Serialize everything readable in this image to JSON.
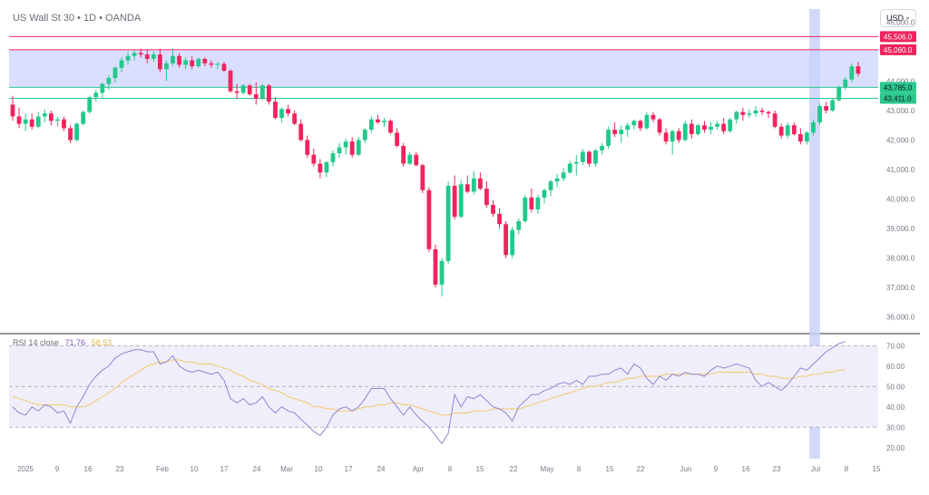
{
  "header": {
    "title": "US Wall St 30 • 1D • OANDA",
    "currency": "USD",
    "chevron_icon": "chevron-down-icon"
  },
  "rsi_legend": {
    "label": "RSI 14 close",
    "rsi_value": "71.76",
    "ma_value": "58.53"
  },
  "colors": {
    "up": "#22c98a",
    "down": "#f0245d",
    "zone_fill": "#d6dcff",
    "red_line": "#f0245d",
    "green_line": "#2cc98e",
    "highlight": "#c7d1fb",
    "rsi_line": "#8e86cf",
    "rsi_ma": "#f2c96a",
    "rsi_band": "#f1eefb"
  },
  "chart_data": [
    {
      "type": "candlestick",
      "title": "US Wall St 30 • 1D • OANDA",
      "ylim": [
        35500,
        46500
      ],
      "yticks": [
        "46,000.0",
        "45,000.0",
        "44,000.0",
        "43,000.0",
        "42,000.0",
        "41,000.0",
        "40,000.0",
        "39,000.0",
        "38,000.0",
        "37,000.0",
        "36,000.0"
      ],
      "ytick_values": [
        46000,
        45000,
        44000,
        43000,
        42000,
        41000,
        40000,
        39000,
        38000,
        37000,
        36000
      ],
      "xticks": [
        "2025",
        "9",
        "16",
        "23",
        "Feb",
        "10",
        "17",
        "24",
        "Mar",
        "10",
        "17",
        "24",
        "Apr",
        "8",
        "15",
        "22",
        "May",
        "8",
        "15",
        "22",
        "Jun",
        "9",
        "16",
        "23",
        "Jul",
        "8",
        "15"
      ],
      "levels": [
        {
          "value": 45506.0,
          "label": "45,506.0",
          "kind": "resistance"
        },
        {
          "value": 45060.0,
          "label": "45,060.0",
          "kind": "resistance"
        },
        {
          "value": 43785.0,
          "label": "43,785.0",
          "kind": "support"
        },
        {
          "value": 43411.0,
          "label": "43,411.0",
          "kind": "support"
        }
      ],
      "zone": [
        43785,
        45060
      ],
      "ohlc": [
        [
          43200,
          43500,
          42650,
          42800
        ],
        [
          42800,
          43100,
          42400,
          42550
        ],
        [
          42550,
          42900,
          42300,
          42700
        ],
        [
          42700,
          42900,
          42350,
          42450
        ],
        [
          42450,
          42950,
          42400,
          42800
        ],
        [
          42800,
          43050,
          42600,
          42900
        ],
        [
          42900,
          43000,
          42500,
          42650
        ],
        [
          42650,
          42800,
          42450,
          42700
        ],
        [
          42700,
          42800,
          42300,
          42400
        ],
        [
          42400,
          42500,
          41900,
          42000
        ],
        [
          42000,
          42600,
          41950,
          42550
        ],
        [
          42550,
          43000,
          42500,
          42950
        ],
        [
          42950,
          43500,
          42900,
          43450
        ],
        [
          43450,
          43700,
          43300,
          43600
        ],
        [
          43600,
          43950,
          43400,
          43900
        ],
        [
          43900,
          44200,
          43700,
          44100
        ],
        [
          44100,
          44500,
          43950,
          44450
        ],
        [
          44450,
          44800,
          44300,
          44700
        ],
        [
          44700,
          45000,
          44550,
          44850
        ],
        [
          44850,
          45050,
          44700,
          44950
        ],
        [
          44950,
          45100,
          44800,
          44900
        ],
        [
          44900,
          45050,
          44600,
          44750
        ],
        [
          44750,
          45000,
          44650,
          44900
        ],
        [
          44900,
          45100,
          44300,
          44400
        ],
        [
          44400,
          44700,
          44000,
          44600
        ],
        [
          44600,
          45100,
          44500,
          44850
        ],
        [
          44850,
          44950,
          44450,
          44550
        ],
        [
          44550,
          44800,
          44400,
          44700
        ],
        [
          44700,
          44850,
          44400,
          44500
        ],
        [
          44500,
          44800,
          44450,
          44750
        ],
        [
          44750,
          44800,
          44500,
          44600
        ],
        [
          44600,
          44700,
          44450,
          44550
        ],
        [
          44550,
          44650,
          44400,
          44580
        ],
        [
          44580,
          44650,
          44300,
          44350
        ],
        [
          44350,
          44400,
          43600,
          43650
        ],
        [
          43650,
          43900,
          43400,
          43600
        ],
        [
          43600,
          43900,
          43550,
          43850
        ],
        [
          43850,
          43900,
          43500,
          43550
        ],
        [
          43550,
          43950,
          43200,
          43400
        ],
        [
          43400,
          43900,
          43350,
          43850
        ],
        [
          43850,
          43900,
          43200,
          43300
        ],
        [
          43300,
          43450,
          42700,
          42750
        ],
        [
          42750,
          43100,
          42600,
          43050
        ],
        [
          43050,
          43200,
          42800,
          42900
        ],
        [
          42900,
          43000,
          42500,
          42550
        ],
        [
          42550,
          42700,
          41950,
          42000
        ],
        [
          42000,
          42150,
          41400,
          41500
        ],
        [
          41500,
          41700,
          41100,
          41200
        ],
        [
          41200,
          41350,
          40700,
          40900
        ],
        [
          40900,
          41300,
          40750,
          41250
        ],
        [
          41250,
          41650,
          41100,
          41550
        ],
        [
          41550,
          41900,
          41400,
          41750
        ],
        [
          41750,
          42050,
          41500,
          41950
        ],
        [
          41950,
          42100,
          41400,
          41500
        ],
        [
          41500,
          42100,
          41450,
          42000
        ],
        [
          42000,
          42400,
          41900,
          42350
        ],
        [
          42350,
          42800,
          42250,
          42700
        ],
        [
          42700,
          42850,
          42550,
          42600
        ],
        [
          42600,
          42750,
          42450,
          42650
        ],
        [
          42650,
          42700,
          42200,
          42250
        ],
        [
          42250,
          42400,
          41750,
          41800
        ],
        [
          41800,
          41900,
          41100,
          41200
        ],
        [
          41200,
          41600,
          41150,
          41500
        ],
        [
          41500,
          41600,
          41100,
          41150
        ],
        [
          41150,
          41200,
          40200,
          40300
        ],
        [
          40300,
          40400,
          38200,
          38300
        ],
        [
          38300,
          38450,
          37000,
          37100
        ],
        [
          37100,
          38000,
          36700,
          37900
        ],
        [
          37900,
          40600,
          37800,
          40450
        ],
        [
          40450,
          40800,
          39300,
          39400
        ],
        [
          39400,
          40650,
          39350,
          40500
        ],
        [
          40500,
          40800,
          40200,
          40250
        ],
        [
          40250,
          40950,
          40150,
          40700
        ],
        [
          40700,
          40900,
          40300,
          40350
        ],
        [
          40350,
          40600,
          39700,
          39800
        ],
        [
          39800,
          39950,
          39400,
          39500
        ],
        [
          39500,
          39700,
          39000,
          39150
        ],
        [
          39150,
          39250,
          38000,
          38100
        ],
        [
          38100,
          39050,
          38000,
          38950
        ],
        [
          38950,
          39350,
          38800,
          39250
        ],
        [
          39250,
          40150,
          39200,
          40050
        ],
        [
          40050,
          40350,
          39550,
          39650
        ],
        [
          39650,
          40150,
          39500,
          40050
        ],
        [
          40050,
          40350,
          39850,
          40300
        ],
        [
          40300,
          40650,
          40100,
          40600
        ],
        [
          40600,
          40850,
          40400,
          40700
        ],
        [
          40700,
          41050,
          40600,
          40900
        ],
        [
          40900,
          41300,
          40850,
          41200
        ],
        [
          41200,
          41500,
          40800,
          41250
        ],
        [
          41250,
          41700,
          41150,
          41600
        ],
        [
          41600,
          41650,
          41100,
          41200
        ],
        [
          41200,
          41700,
          41100,
          41650
        ],
        [
          41650,
          41900,
          41500,
          41800
        ],
        [
          41800,
          42450,
          41700,
          42350
        ],
        [
          42350,
          42600,
          42100,
          42200
        ],
        [
          42200,
          42500,
          41900,
          42350
        ],
        [
          42350,
          42600,
          42100,
          42500
        ],
        [
          42500,
          42700,
          42350,
          42650
        ],
        [
          42650,
          42700,
          42300,
          42400
        ],
        [
          42400,
          42950,
          42350,
          42850
        ],
        [
          42850,
          42950,
          42600,
          42700
        ],
        [
          42700,
          42750,
          42150,
          42250
        ],
        [
          42250,
          42400,
          41850,
          41950
        ],
        [
          41950,
          42350,
          41500,
          42300
        ],
        [
          42300,
          42400,
          41900,
          42000
        ],
        [
          42000,
          42650,
          41950,
          42550
        ],
        [
          42550,
          42700,
          42050,
          42200
        ],
        [
          42200,
          42550,
          42150,
          42500
        ],
        [
          42500,
          42650,
          42250,
          42350
        ],
        [
          42350,
          42600,
          42200,
          42450
        ],
        [
          42450,
          42650,
          42350,
          42550
        ],
        [
          42550,
          42750,
          42200,
          42300
        ],
        [
          42300,
          42750,
          42250,
          42700
        ],
        [
          42700,
          43000,
          42550,
          42950
        ],
        [
          42950,
          43100,
          42650,
          42850
        ],
        [
          42850,
          43050,
          42750,
          42900
        ],
        [
          42900,
          43150,
          42800,
          43000
        ],
        [
          43000,
          43100,
          42850,
          42950
        ],
        [
          42950,
          43000,
          42750,
          42900
        ],
        [
          42900,
          43000,
          42400,
          42450
        ],
        [
          42450,
          42550,
          42050,
          42150
        ],
        [
          42150,
          42600,
          42050,
          42500
        ],
        [
          42500,
          42600,
          42150,
          42200
        ],
        [
          42200,
          42400,
          41850,
          41950
        ],
        [
          41950,
          42300,
          41850,
          42250
        ],
        [
          42250,
          42700,
          42150,
          42600
        ],
        [
          42600,
          43250,
          42500,
          43150
        ],
        [
          43150,
          43300,
          42900,
          43000
        ],
        [
          43000,
          43400,
          42950,
          43350
        ],
        [
          43350,
          43850,
          43300,
          43800
        ],
        [
          43800,
          44150,
          43700,
          44050
        ],
        [
          44050,
          44600,
          43950,
          44500
        ],
        [
          44500,
          44650,
          44150,
          44250
        ]
      ]
    },
    {
      "type": "line",
      "title": "RSI 14 close",
      "ylim": [
        15,
        75
      ],
      "yticks": [
        "70.00",
        "60.00",
        "50.00",
        "40.00",
        "30.00",
        "20.00"
      ],
      "ytick_values": [
        70,
        60,
        50,
        40,
        30,
        20
      ],
      "bands": [
        70,
        50,
        30
      ],
      "series": [
        {
          "name": "RSI",
          "values": [
            40,
            37,
            36,
            40,
            38,
            41,
            40,
            37,
            38,
            32,
            40,
            45,
            51,
            55,
            58,
            60,
            64,
            66,
            67,
            68,
            68,
            67,
            67,
            61,
            62,
            65,
            60,
            58,
            57,
            58,
            57,
            56,
            57,
            53,
            44,
            42,
            44,
            41,
            42,
            45,
            40,
            37,
            40,
            38,
            37,
            34,
            31,
            28,
            26,
            30,
            36,
            39,
            40,
            38,
            40,
            44,
            49,
            49,
            49,
            44,
            40,
            36,
            40,
            36,
            33,
            30,
            26,
            22,
            27,
            46,
            40,
            45,
            44,
            46,
            43,
            40,
            39,
            37,
            33,
            40,
            43,
            46,
            46,
            48,
            49,
            51,
            52,
            51,
            53,
            51,
            55,
            55,
            56,
            56,
            58,
            59,
            56,
            61,
            59,
            54,
            51,
            55,
            53,
            56,
            55,
            57,
            56,
            56,
            55,
            58,
            60,
            59,
            60,
            61,
            60,
            59,
            53,
            50,
            52,
            50,
            48,
            51,
            55,
            59,
            58,
            61,
            64,
            67,
            69,
            71,
            72
          ]
        },
        {
          "name": "MA",
          "values": [
            45,
            44,
            43,
            42,
            41,
            41,
            41,
            41,
            41,
            40,
            40,
            40,
            41,
            43,
            45,
            47,
            49,
            52,
            54,
            56,
            58,
            60,
            61,
            62,
            62,
            63,
            63,
            62,
            62,
            61,
            61,
            61,
            60,
            59,
            58,
            56,
            55,
            53,
            52,
            51,
            49,
            48,
            47,
            45,
            44,
            43,
            42,
            40,
            40,
            39,
            39,
            38,
            38,
            38,
            39,
            40,
            40,
            41,
            41,
            42,
            42,
            41,
            41,
            40,
            39,
            38,
            37,
            36,
            36,
            37,
            37,
            37,
            38,
            38,
            38,
            39,
            39,
            39,
            39,
            39,
            40,
            41,
            42,
            43,
            44,
            45,
            46,
            47,
            48,
            49,
            50,
            50,
            51,
            52,
            52,
            53,
            54,
            54,
            55,
            55,
            55,
            55,
            56,
            56,
            56,
            56,
            56,
            56,
            56,
            56,
            57,
            57,
            57,
            57,
            57,
            57,
            56,
            56,
            55,
            55,
            54,
            54,
            54,
            55,
            55,
            56,
            56,
            57,
            57,
            58,
            58
          ]
        }
      ]
    }
  ]
}
